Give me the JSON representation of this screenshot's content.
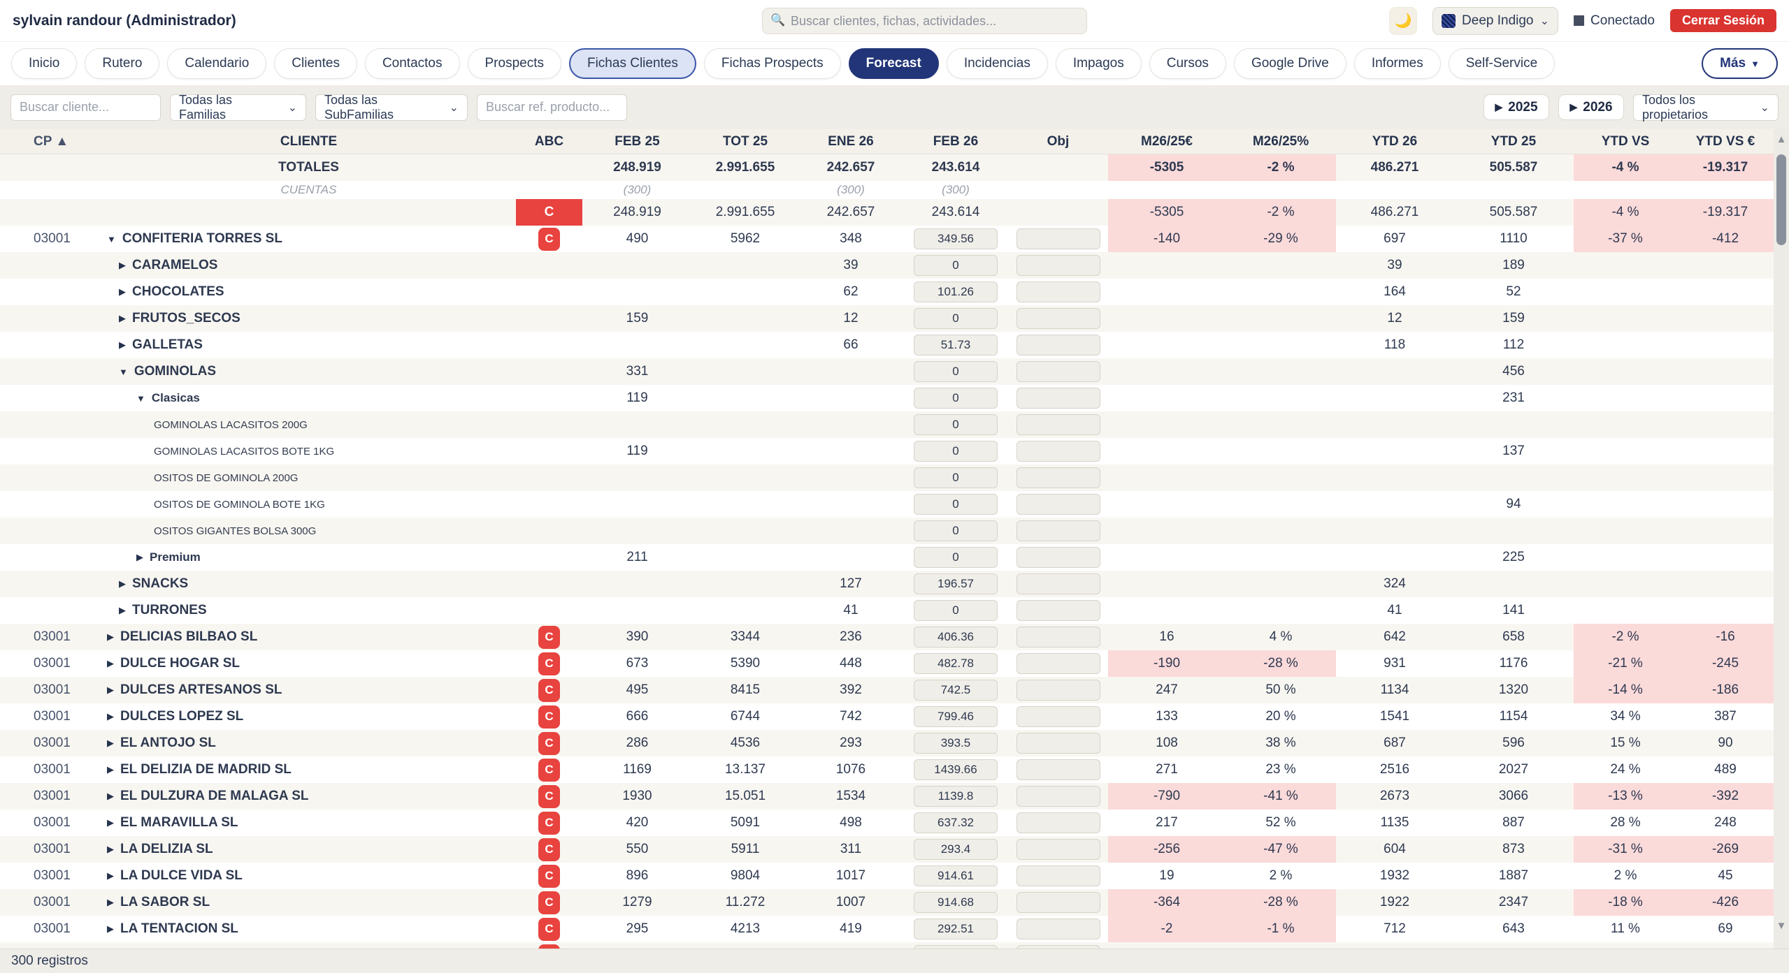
{
  "header": {
    "user": "sylvain randour (Administrador)",
    "search_placeholder": "Buscar clientes, fichas, actividades...",
    "search_icon": "🔍",
    "moon_icon": "🌙",
    "theme": "Deep Indigo",
    "chevron_icon": "⌄",
    "status": "Conectado",
    "logout": "Cerrar Sesión"
  },
  "nav": {
    "tabs": [
      {
        "label": "Inicio",
        "state": "default"
      },
      {
        "label": "Rutero",
        "state": "default"
      },
      {
        "label": "Calendario",
        "state": "default"
      },
      {
        "label": "Clientes",
        "state": "default"
      },
      {
        "label": "Contactos",
        "state": "default"
      },
      {
        "label": "Prospects",
        "state": "default"
      },
      {
        "label": "Fichas Clientes",
        "state": "highlight"
      },
      {
        "label": "Fichas Prospects",
        "state": "default"
      },
      {
        "label": "Forecast",
        "state": "active"
      },
      {
        "label": "Incidencias",
        "state": "default"
      },
      {
        "label": "Impagos",
        "state": "default"
      },
      {
        "label": "Cursos",
        "state": "default"
      },
      {
        "label": "Google Drive",
        "state": "default"
      },
      {
        "label": "Informes",
        "state": "default"
      },
      {
        "label": "Self-Service",
        "state": "default"
      }
    ],
    "more_label": "Más",
    "more_icon": "▼"
  },
  "filters": {
    "search_client_placeholder": "Buscar cliente...",
    "families": "Todas las Familias",
    "subfamilies": "Todas las SubFamilias",
    "search_product_placeholder": "Buscar ref. producto...",
    "year_icon": "▶",
    "year_2025": "2025",
    "year_2026": "2026",
    "owners": "Todos los propietarios",
    "chevron_icon": "⌄"
  },
  "table": {
    "columns": [
      {
        "key": "cp",
        "label": "CP ▲"
      },
      {
        "key": "cliente",
        "label": "CLIENTE"
      },
      {
        "key": "abc",
        "label": "ABC"
      },
      {
        "key": "feb25",
        "label": "FEB 25"
      },
      {
        "key": "tot25",
        "label": "TOT 25"
      },
      {
        "key": "ene26",
        "label": "ENE 26"
      },
      {
        "key": "feb26",
        "label": "FEB 26"
      },
      {
        "key": "obj",
        "label": "Obj"
      },
      {
        "key": "m26e",
        "label": "M26/25€"
      },
      {
        "key": "m26p",
        "label": "M26/25%"
      },
      {
        "key": "ytd26",
        "label": "YTD 26"
      },
      {
        "key": "ytd25",
        "label": "YTD 25"
      },
      {
        "key": "ytdvs",
        "label": "YTD VS"
      },
      {
        "key": "ytdvse",
        "label": "YTD VS €"
      }
    ],
    "rows": [
      {
        "type": "totals",
        "name": "TOTALES",
        "feb25": "248.919",
        "tot25": "2.991.655",
        "ene26": "242.657",
        "feb26": "243.614",
        "m26e": "-5305",
        "m26p": "-2 %",
        "ytd26": "486.271",
        "ytd25": "505.587",
        "ytdvs": "-4 %",
        "ytdvse": "-19.317"
      },
      {
        "type": "cuentas",
        "name": "CUENTAS",
        "feb25": "(300)",
        "ene26": "(300)",
        "feb26": "(300)"
      },
      {
        "type": "summary",
        "abc": "block",
        "feb25": "248.919",
        "tot25": "2.991.655",
        "ene26": "242.657",
        "feb26": "243.614",
        "m26e": "-5305",
        "m26p": "-2 %",
        "ytd26": "486.271",
        "ytd25": "505.587",
        "ytdvs": "-4 %",
        "ytdvse": "-19.317"
      },
      {
        "type": "client",
        "cp": "03001",
        "arrow": "open",
        "name": "CONFITERIA TORRES SL",
        "abc": "badge",
        "inputs": true,
        "feb25": "490",
        "tot25": "5962",
        "ene26": "348",
        "feb26": "349.56",
        "m26e": "-140",
        "m26p": "-29 %",
        "ytd26": "697",
        "ytd25": "1110",
        "ytdvs": "-37 %",
        "ytdvse": "-412"
      },
      {
        "type": "family",
        "arrow": "closed",
        "name": "CARAMELOS",
        "inputs": true,
        "ene26": "39",
        "feb26": "0",
        "ytd26": "39",
        "ytd25": "189"
      },
      {
        "type": "family",
        "arrow": "closed",
        "name": "CHOCOLATES",
        "inputs": true,
        "ene26": "62",
        "feb26": "101.26",
        "ytd26": "164",
        "ytd25": "52"
      },
      {
        "type": "family",
        "arrow": "closed",
        "name": "FRUTOS_SECOS",
        "inputs": true,
        "feb25": "159",
        "ene26": "12",
        "feb26": "0",
        "ytd26": "12",
        "ytd25": "159"
      },
      {
        "type": "family",
        "arrow": "closed",
        "name": "GALLETAS",
        "inputs": true,
        "ene26": "66",
        "feb26": "51.73",
        "ytd26": "118",
        "ytd25": "112"
      },
      {
        "type": "family",
        "arrow": "open",
        "name": "GOMINOLAS",
        "inputs": true,
        "feb25": "331",
        "feb26": "0",
        "ytd25": "456"
      },
      {
        "type": "subfamily",
        "arrow": "open",
        "name": "Clasicas",
        "inputs": true,
        "feb25": "119",
        "feb26": "0",
        "ytd25": "231"
      },
      {
        "type": "product",
        "name": "GOMINOLAS LACASITOS 200G",
        "inputs": true,
        "feb26": "0"
      },
      {
        "type": "product",
        "name": "GOMINOLAS LACASITOS BOTE 1KG",
        "inputs": true,
        "feb25": "119",
        "feb26": "0",
        "ytd25": "137"
      },
      {
        "type": "product",
        "name": "OSITOS DE GOMINOLA 200G",
        "inputs": true,
        "feb26": "0"
      },
      {
        "type": "product",
        "name": "OSITOS DE GOMINOLA BOTE 1KG",
        "inputs": true,
        "feb26": "0",
        "ytd25": "94"
      },
      {
        "type": "product",
        "name": "OSITOS GIGANTES BOLSA 300G",
        "inputs": true,
        "feb26": "0"
      },
      {
        "type": "subfamily",
        "arrow": "closed",
        "name": "Premium",
        "inputs": true,
        "feb25": "211",
        "feb26": "0",
        "ytd25": "225"
      },
      {
        "type": "family",
        "arrow": "closed",
        "name": "SNACKS",
        "inputs": true,
        "ene26": "127",
        "feb26": "196.57",
        "ytd26": "324"
      },
      {
        "type": "family",
        "arrow": "closed",
        "name": "TURRONES",
        "inputs": true,
        "ene26": "41",
        "feb26": "0",
        "ytd26": "41",
        "ytd25": "141"
      },
      {
        "type": "client",
        "cp": "03001",
        "arrow": "closed",
        "name": "DELICIAS BILBAO SL",
        "abc": "badge",
        "inputs": true,
        "feb25": "390",
        "tot25": "3344",
        "ene26": "236",
        "feb26": "406.36",
        "m26e": "16",
        "m26p": "4 %",
        "ytd26": "642",
        "ytd25": "658",
        "ytdvs": "-2 %",
        "ytdvse": "-16"
      },
      {
        "type": "client",
        "cp": "03001",
        "arrow": "closed",
        "name": "DULCE HOGAR SL",
        "abc": "badge",
        "inputs": true,
        "feb25": "673",
        "tot25": "5390",
        "ene26": "448",
        "feb26": "482.78",
        "m26e": "-190",
        "m26p": "-28 %",
        "ytd26": "931",
        "ytd25": "1176",
        "ytdvs": "-21 %",
        "ytdvse": "-245"
      },
      {
        "type": "client",
        "cp": "03001",
        "arrow": "closed",
        "name": "DULCES ARTESANOS SL",
        "abc": "badge",
        "inputs": true,
        "feb25": "495",
        "tot25": "8415",
        "ene26": "392",
        "feb26": "742.5",
        "m26e": "247",
        "m26p": "50 %",
        "ytd26": "1134",
        "ytd25": "1320",
        "ytdvs": "-14 %",
        "ytdvse": "-186"
      },
      {
        "type": "client",
        "cp": "03001",
        "arrow": "closed",
        "name": "DULCES LOPEZ SL",
        "abc": "badge",
        "inputs": true,
        "feb25": "666",
        "tot25": "6744",
        "ene26": "742",
        "feb26": "799.46",
        "m26e": "133",
        "m26p": "20 %",
        "ytd26": "1541",
        "ytd25": "1154",
        "ytdvs": "34 %",
        "ytdvse": "387"
      },
      {
        "type": "client",
        "cp": "03001",
        "arrow": "closed",
        "name": "EL ANTOJO SL",
        "abc": "badge",
        "inputs": true,
        "feb25": "286",
        "tot25": "4536",
        "ene26": "293",
        "feb26": "393.5",
        "m26e": "108",
        "m26p": "38 %",
        "ytd26": "687",
        "ytd25": "596",
        "ytdvs": "15 %",
        "ytdvse": "90"
      },
      {
        "type": "client",
        "cp": "03001",
        "arrow": "closed",
        "name": "EL DELIZIA DE MADRID SL",
        "abc": "badge",
        "inputs": true,
        "feb25": "1169",
        "tot25": "13.137",
        "ene26": "1076",
        "feb26": "1439.66",
        "m26e": "271",
        "m26p": "23 %",
        "ytd26": "2516",
        "ytd25": "2027",
        "ytdvs": "24 %",
        "ytdvse": "489"
      },
      {
        "type": "client",
        "cp": "03001",
        "arrow": "closed",
        "name": "EL DULZURA DE MALAGA SL",
        "abc": "badge",
        "inputs": true,
        "feb25": "1930",
        "tot25": "15.051",
        "ene26": "1534",
        "feb26": "1139.8",
        "m26e": "-790",
        "m26p": "-41 %",
        "ytd26": "2673",
        "ytd25": "3066",
        "ytdvs": "-13 %",
        "ytdvse": "-392"
      },
      {
        "type": "client",
        "cp": "03001",
        "arrow": "closed",
        "name": "EL MARAVILLA SL",
        "abc": "badge",
        "inputs": true,
        "feb25": "420",
        "tot25": "5091",
        "ene26": "498",
        "feb26": "637.32",
        "m26e": "217",
        "m26p": "52 %",
        "ytd26": "1135",
        "ytd25": "887",
        "ytdvs": "28 %",
        "ytdvse": "248"
      },
      {
        "type": "client",
        "cp": "03001",
        "arrow": "closed",
        "name": "LA DELIZIA SL",
        "abc": "badge",
        "inputs": true,
        "feb25": "550",
        "tot25": "5911",
        "ene26": "311",
        "feb26": "293.4",
        "m26e": "-256",
        "m26p": "-47 %",
        "ytd26": "604",
        "ytd25": "873",
        "ytdvs": "-31 %",
        "ytdvse": "-269"
      },
      {
        "type": "client",
        "cp": "03001",
        "arrow": "closed",
        "name": "LA DULCE VIDA SL",
        "abc": "badge",
        "inputs": true,
        "feb25": "896",
        "tot25": "9804",
        "ene26": "1017",
        "feb26": "914.61",
        "m26e": "19",
        "m26p": "2 %",
        "ytd26": "1932",
        "ytd25": "1887",
        "ytdvs": "2 %",
        "ytdvse": "45"
      },
      {
        "type": "client",
        "cp": "03001",
        "arrow": "closed",
        "name": "LA SABOR SL",
        "abc": "badge",
        "inputs": true,
        "feb25": "1279",
        "tot25": "11.272",
        "ene26": "1007",
        "feb26": "914.68",
        "m26e": "-364",
        "m26p": "-28 %",
        "ytd26": "1922",
        "ytd25": "2347",
        "ytdvs": "-18 %",
        "ytdvse": "-426"
      },
      {
        "type": "client",
        "cp": "03001",
        "arrow": "closed",
        "name": "LA TENTACION SL",
        "abc": "badge",
        "inputs": true,
        "feb25": "295",
        "tot25": "4213",
        "ene26": "419",
        "feb26": "292.51",
        "m26e": "-2",
        "m26p": "-1 %",
        "ytd26": "712",
        "ytd25": "643",
        "ytdvs": "11 %",
        "ytdvse": "69"
      },
      {
        "type": "client",
        "cp": "",
        "arrow": null,
        "name": "",
        "abc": "badge",
        "inputs": true,
        "feb26": ""
      }
    ]
  },
  "scrollbar": {
    "up_icon": "▲",
    "down_icon": "▼"
  },
  "footer": {
    "records": "300 registros"
  },
  "colors": {
    "accent_navy": "#223578",
    "badge_red": "#e8433f",
    "negative_pink": "#fbdada",
    "logout_red": "#d93430",
    "page_bg": "#efede7",
    "row_alt": "#f8f6f1",
    "header_bg": "#f3f1ea",
    "highlight_tab_bg": "#dce3f5"
  }
}
